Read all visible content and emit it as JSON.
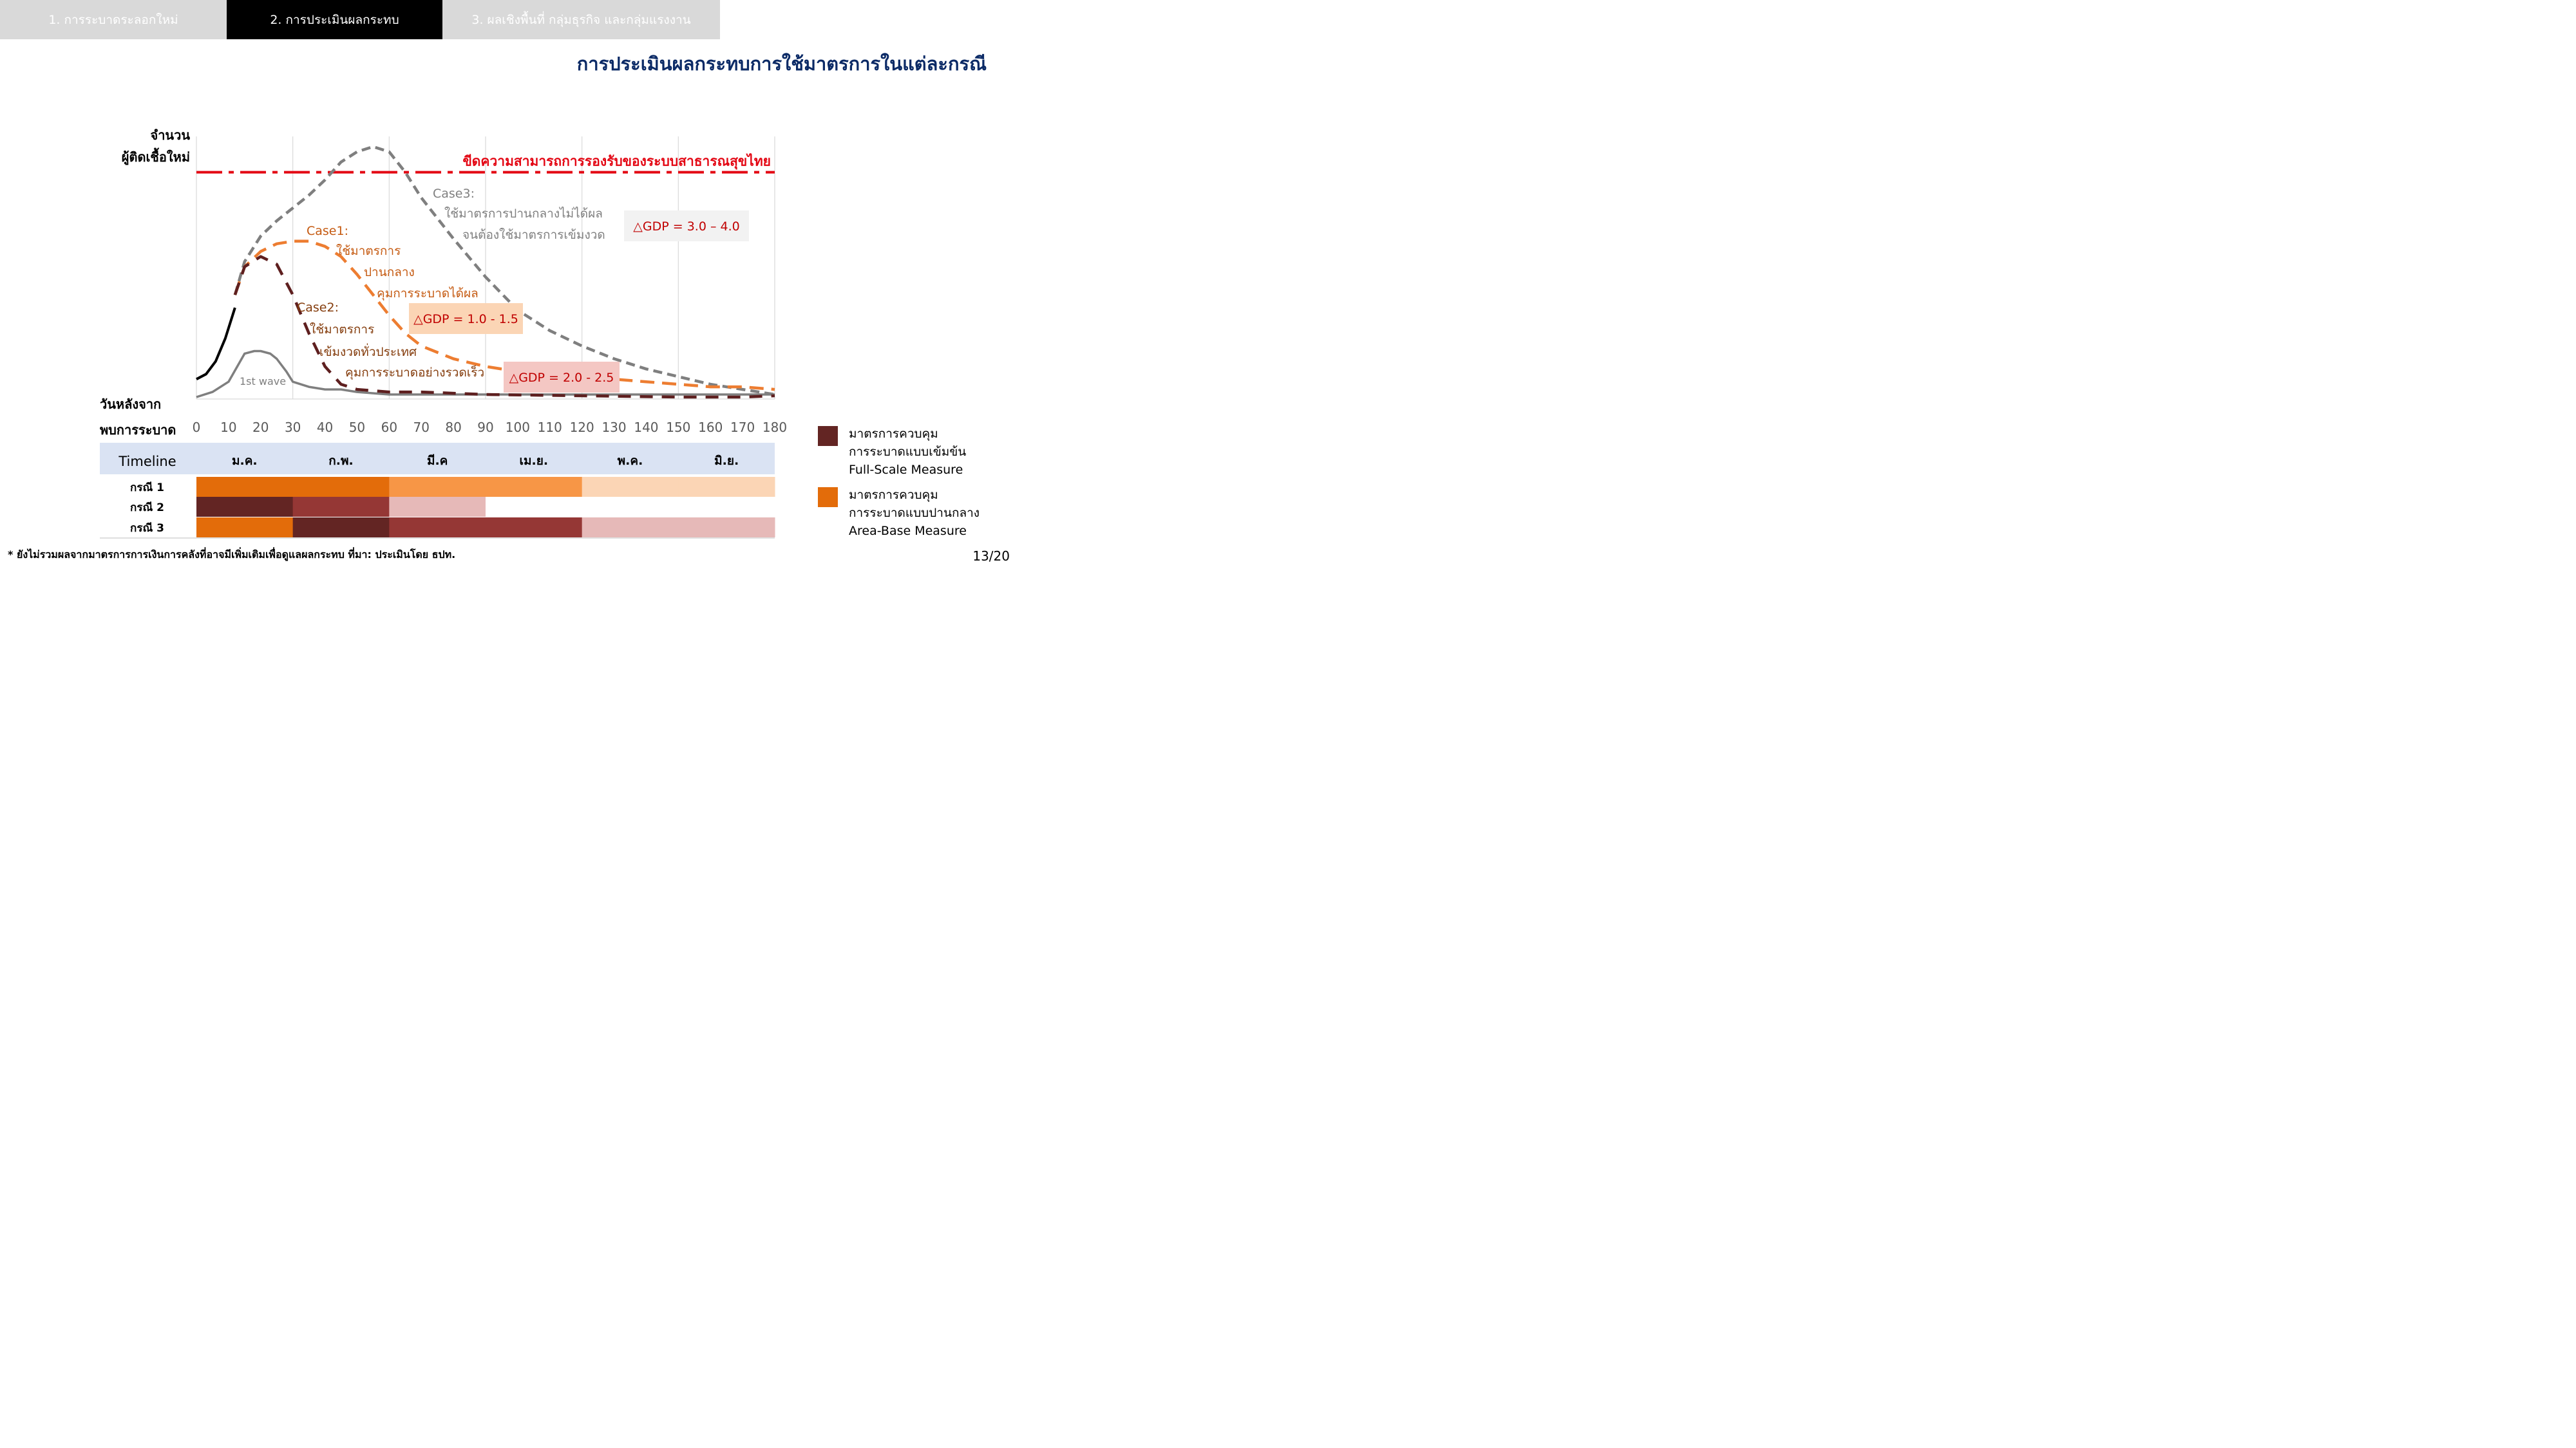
{
  "tabs": [
    {
      "label": "1. การระบาดระลอกใหม่",
      "active": false
    },
    {
      "label": "2. การประเมินผลกระทบ",
      "active": true
    },
    {
      "label": "3. ผลเชิงพื้นที่ กลุ่มธุรกิจ และกลุ่มแรงงาน",
      "active": false
    }
  ],
  "page_title": "การประเมินผลกระทบการใช้มาตรการในแต่ละกรณี",
  "chart_data": {
    "type": "line",
    "ylabel": [
      "จำนวน",
      "ผู้ติดเชื้อใหม่"
    ],
    "xlabel": [
      "วันหลังจาก",
      "พบการระบาด"
    ],
    "x_ticks": [
      0,
      10,
      20,
      30,
      40,
      50,
      60,
      70,
      80,
      90,
      100,
      110,
      120,
      130,
      140,
      150,
      160,
      170,
      180
    ],
    "xlim": [
      0,
      180
    ],
    "ylim": [
      0,
      100
    ],
    "grid_vertical": true,
    "threshold": {
      "label": "ขีดความสามารถการรองรับของระบบสาธารณสุขไทย",
      "value": 88,
      "color": "#e30613"
    },
    "series": [
      {
        "key": "initial",
        "color": "#000000",
        "style": "solid",
        "x": [
          0,
          3,
          6,
          9,
          12
        ],
        "y": [
          7,
          9,
          14,
          23,
          35
        ]
      },
      {
        "key": "first_wave",
        "color": "#7f7f7f",
        "style": "solid",
        "x": [
          0,
          5,
          10,
          15,
          18,
          20,
          23,
          25,
          28,
          30,
          35,
          40,
          45,
          50,
          60,
          90,
          120,
          150,
          180
        ],
        "y": [
          0,
          2,
          6,
          17,
          18,
          18,
          17,
          15,
          10,
          6,
          4,
          3,
          3,
          2,
          1,
          1,
          1,
          1,
          1
        ]
      },
      {
        "key": "case3",
        "color": "#7f7f7f",
        "style": "dash",
        "x": [
          12,
          15,
          20,
          25,
          30,
          35,
          40,
          45,
          50,
          55,
          60,
          65,
          70,
          80,
          90,
          100,
          110,
          120,
          130,
          140,
          150,
          160,
          170,
          180
        ],
        "y": [
          40,
          53,
          63,
          69,
          74,
          79,
          85,
          92,
          96,
          98,
          96,
          88,
          78,
          62,
          47,
          34,
          26,
          20,
          15,
          11,
          8,
          5,
          3,
          1
        ]
      },
      {
        "key": "case1",
        "color": "#ed7d31",
        "style": "dash",
        "x": [
          12,
          15,
          20,
          25,
          30,
          35,
          40,
          45,
          50,
          55,
          60,
          65,
          70,
          80,
          90,
          100,
          110,
          120,
          130,
          140,
          150,
          160,
          170,
          180
        ],
        "y": [
          40,
          51,
          57,
          60,
          61,
          61,
          59,
          55,
          48,
          40,
          32,
          25,
          20,
          15,
          12,
          10,
          9,
          8,
          7,
          6,
          5,
          4,
          4,
          3
        ]
      },
      {
        "key": "case2",
        "color": "#5e1f1f",
        "style": "dash",
        "x": [
          12,
          15,
          20,
          25,
          30,
          35,
          40,
          45,
          50,
          60,
          70,
          90,
          120,
          150,
          170,
          180
        ],
        "y": [
          40,
          51,
          55,
          52,
          40,
          25,
          12,
          5,
          3,
          2,
          2,
          1,
          0.5,
          0,
          0,
          0.5
        ]
      }
    ],
    "annotations": [
      {
        "text": [
          "Case3:",
          "ใช้มาตรการปานกลางไม่ได้ผล",
          "จนต้องใช้มาตรการเข้มงวด"
        ],
        "color": "#7f7f7f"
      },
      {
        "text": [
          "Case1:",
          "ใช้มาตรการ",
          "ปานกลาง",
          "คุมการระบาดได้ผล"
        ],
        "color": "#c55a11"
      },
      {
        "text": [
          "Case2:",
          "ใช้มาตรการ",
          "เข้มงวดทั่วประเทศ",
          "คุมการระบาดอย่างรวดเร็ว"
        ],
        "color": "#843c0c"
      },
      {
        "text": [
          "1st wave"
        ],
        "color": "#7f7f7f"
      }
    ],
    "gdp_boxes": [
      {
        "text": "△GDP = 3.0 – 4.0",
        "bg": "#f2f2f2",
        "color": "#c00000"
      },
      {
        "text": "△GDP = 1.0 - 1.5",
        "bg": "#fbd5b5",
        "color": "#c00000"
      },
      {
        "text": "△GDP = 2.0 - 2.5",
        "bg": "#f4c7c3",
        "color": "#c00000"
      }
    ]
  },
  "timeline": {
    "header": "Timeline",
    "months": [
      "ม.ค.",
      "ก.พ.",
      "มี.ค",
      "เม.ย.",
      "พ.ค.",
      "มิ.ย."
    ],
    "header_bg": "#dae3f3",
    "rows": [
      {
        "label": "กรณี 1",
        "cells": [
          "#e36c0a",
          "#e36c0a",
          "#f79646",
          "#f79646",
          "#fbd5b5",
          "#fbd5b5"
        ]
      },
      {
        "label": "กรณี 2",
        "cells": [
          "#632523",
          "#953735",
          "#e6b9b8",
          "#ffffff",
          "#ffffff",
          "#ffffff"
        ]
      },
      {
        "label": "กรณี 3",
        "cells": [
          "#e36c0a",
          "#632523",
          "#953735",
          "#953735",
          "#e6b9b8",
          "#e6b9b8"
        ]
      }
    ]
  },
  "legend": [
    {
      "color": "#632523",
      "lines": [
        "มาตรการควบคุม",
        "การระบาดแบบเข้มข้น",
        "Full-Scale Measure"
      ]
    },
    {
      "color": "#e36c0a",
      "lines": [
        "มาตรการควบคุม",
        "การระบาดแบบปานกลาง",
        "Area-Base Measure"
      ]
    }
  ],
  "footnote": "* ยังไม่รวมผลจากมาตรการการเงินการคลังที่อาจมีเพิ่มเติมเพื่อดูแลผลกระทบ   ที่มา: ประเมินโดย ธปท.",
  "page_number": "13/20"
}
